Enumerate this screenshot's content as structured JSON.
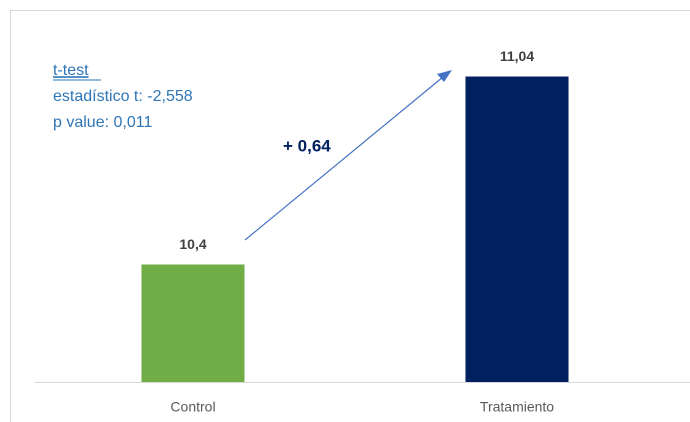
{
  "chart_data": {
    "type": "bar",
    "categories": [
      "Control",
      "Tratamiento"
    ],
    "series": [
      {
        "name": null,
        "colors": [
          "#70ad47",
          "#002060"
        ],
        "values": [
          10.4,
          11.04
        ],
        "value_labels": [
          "10,4",
          "11,04"
        ]
      }
    ],
    "ylim": [
      10,
      11.2
    ],
    "grid": false,
    "annotations": [
      "t-test",
      "estadístico t: -2,558",
      "p value: 0,011",
      "+ 0,64"
    ]
  }
}
